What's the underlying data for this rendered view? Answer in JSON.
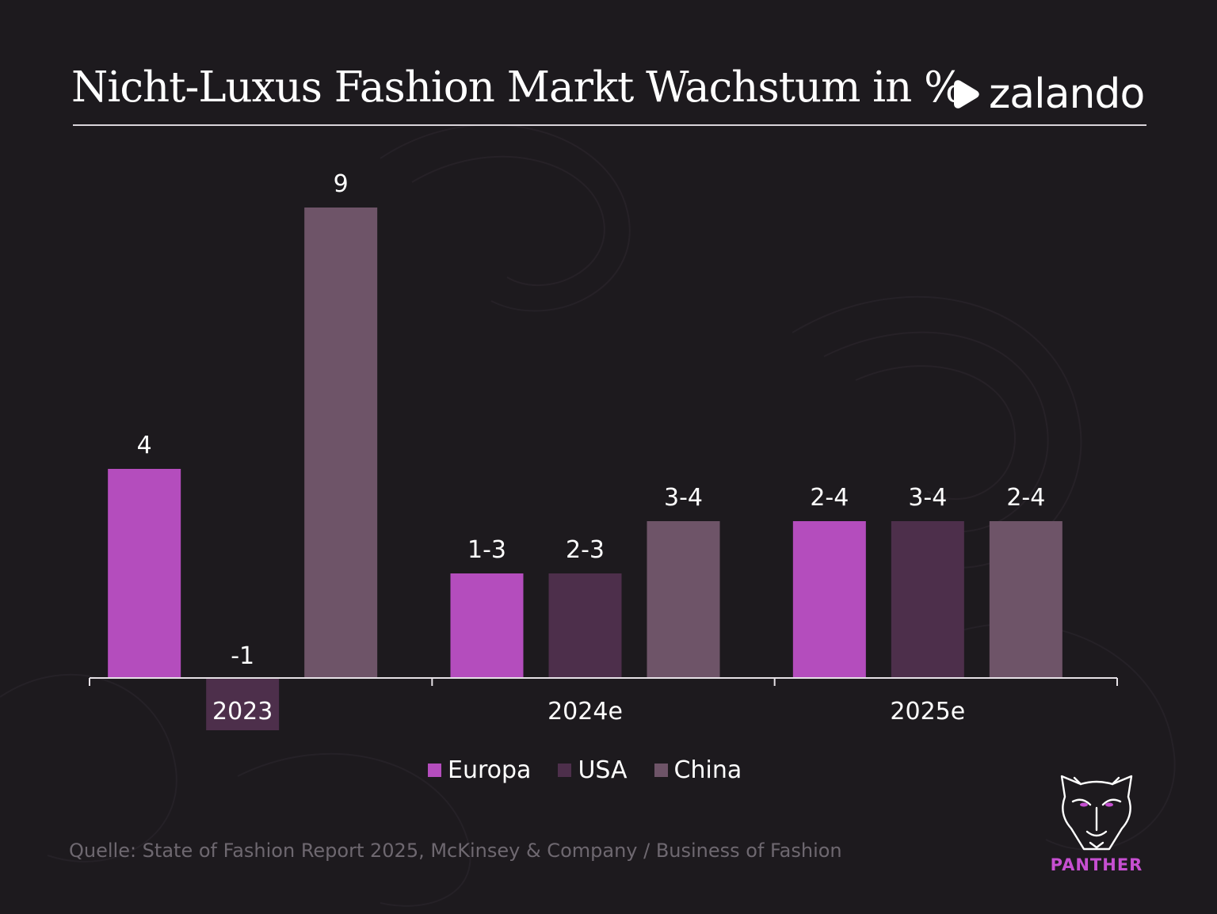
{
  "header": {
    "title": "Nicht-Luxus Fashion Markt Wachstum in %",
    "brand_name": "zalando",
    "brand_icon": "zalando-play-icon"
  },
  "colors": {
    "background": "#1d1a1e",
    "europa": "#b44dbd",
    "usa": "#4d2f4b",
    "china": "#6e5468",
    "axis": "#e6e1e6"
  },
  "chart_data": {
    "type": "bar",
    "title": "Nicht-Luxus Fashion Markt Wachstum in %",
    "categories": [
      "2023",
      "2024e",
      "2025e"
    ],
    "series": [
      {
        "name": "Europa",
        "values": [
          4,
          2,
          3
        ],
        "labels": [
          "4",
          "1-3",
          "2-4"
        ],
        "color": "#b44dbd"
      },
      {
        "name": "USA",
        "values": [
          -1,
          2,
          3
        ],
        "labels": [
          "-1",
          "2-3",
          "3-4"
        ],
        "color": "#4d2f4b"
      },
      {
        "name": "China",
        "values": [
          9,
          3,
          3
        ],
        "labels": [
          "9",
          "3-4",
          "2-4"
        ],
        "color": "#6e5468"
      }
    ],
    "ylim": [
      -1,
      9
    ],
    "grid": false,
    "legend": "bottom-center"
  },
  "legend": {
    "items": [
      {
        "label": "Europa",
        "color": "#b44dbd"
      },
      {
        "label": "USA",
        "color": "#4d2f4b"
      },
      {
        "label": "China",
        "color": "#6e5468"
      }
    ]
  },
  "footer": {
    "source": "Quelle: State of Fashion Report 2025, McKinsey & Company / Business of Fashion",
    "logo_label": "PANTHER",
    "logo_icon": "panther-head-icon"
  }
}
